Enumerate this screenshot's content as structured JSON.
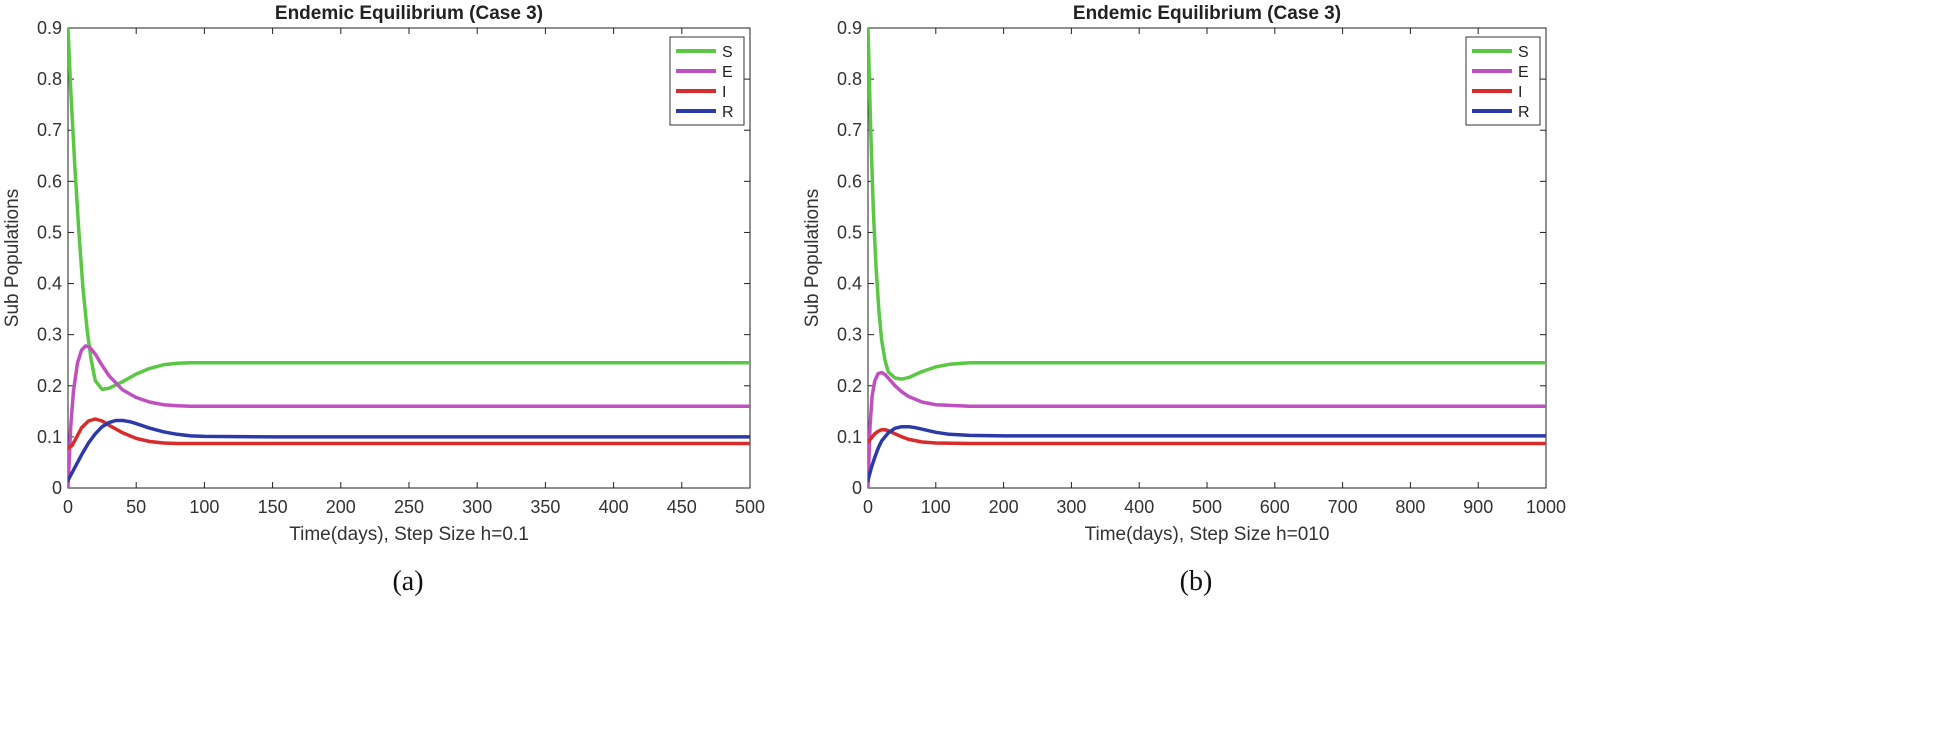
{
  "chart_data": [
    {
      "type": "line",
      "title": "Endemic Equilibrium (Case 3)",
      "xlabel": "Time(days), Step Size h=0.1",
      "ylabel": "Sub Populations",
      "caption": "(a)",
      "xlim": [
        0,
        500
      ],
      "ylim": [
        0,
        0.9
      ],
      "xticks": [
        0,
        50,
        100,
        150,
        200,
        250,
        300,
        350,
        400,
        450,
        500
      ],
      "yticks": [
        0,
        0.1,
        0.2,
        0.3,
        0.4,
        0.5,
        0.6,
        0.7,
        0.8,
        0.9
      ],
      "xtick_labels": [
        "0",
        "50",
        "100",
        "150",
        "200",
        "250",
        "300",
        "350",
        "400",
        "450",
        "500"
      ],
      "ytick_labels": [
        "0",
        "0.1",
        "0.2",
        "0.3",
        "0.4",
        "0.5",
        "0.6",
        "0.7",
        "0.8",
        "0.9"
      ],
      "legend_position": "top-right",
      "series": [
        {
          "name": "S",
          "color": "#5ac845",
          "x": [
            0,
            2,
            5,
            8,
            11,
            14,
            17,
            20,
            25,
            30,
            40,
            50,
            60,
            70,
            80,
            90,
            100,
            120,
            150,
            200,
            300,
            400,
            500
          ],
          "y": [
            0.9,
            0.78,
            0.63,
            0.5,
            0.39,
            0.31,
            0.25,
            0.21,
            0.193,
            0.195,
            0.208,
            0.223,
            0.234,
            0.241,
            0.244,
            0.245,
            0.245,
            0.245,
            0.245,
            0.245,
            0.245,
            0.245,
            0.245
          ]
        },
        {
          "name": "E",
          "color": "#c04fc0",
          "x": [
            0,
            2,
            4,
            7,
            10,
            13,
            16,
            20,
            25,
            30,
            40,
            50,
            60,
            70,
            80,
            90,
            100,
            150,
            200,
            300,
            400,
            500
          ],
          "y": [
            0.0,
            0.12,
            0.19,
            0.245,
            0.27,
            0.278,
            0.275,
            0.262,
            0.24,
            0.22,
            0.192,
            0.177,
            0.168,
            0.163,
            0.161,
            0.16,
            0.16,
            0.16,
            0.16,
            0.16,
            0.16,
            0.16
          ]
        },
        {
          "name": "I",
          "color": "#d82b2b",
          "x": [
            0,
            3,
            6,
            10,
            15,
            20,
            25,
            30,
            40,
            50,
            60,
            70,
            80,
            100,
            150,
            200,
            300,
            400,
            500
          ],
          "y": [
            0.078,
            0.083,
            0.098,
            0.118,
            0.131,
            0.135,
            0.131,
            0.123,
            0.108,
            0.097,
            0.091,
            0.088,
            0.087,
            0.087,
            0.087,
            0.087,
            0.087,
            0.087,
            0.087
          ]
        },
        {
          "name": "R",
          "color": "#2b3aa8",
          "x": [
            0,
            5,
            10,
            15,
            20,
            25,
            30,
            35,
            40,
            45,
            50,
            60,
            70,
            80,
            90,
            100,
            150,
            200,
            300,
            400,
            500
          ],
          "y": [
            0.015,
            0.04,
            0.065,
            0.088,
            0.106,
            0.12,
            0.128,
            0.132,
            0.132,
            0.13,
            0.126,
            0.117,
            0.11,
            0.105,
            0.102,
            0.101,
            0.1,
            0.1,
            0.1,
            0.1,
            0.1
          ]
        }
      ]
    },
    {
      "type": "line",
      "title": "Endemic Equilibrium (Case 3)",
      "xlabel": "Time(days), Step Size h=010",
      "ylabel": "Sub Populations",
      "caption": "(b)",
      "xlim": [
        0,
        1000
      ],
      "ylim": [
        0,
        0.9
      ],
      "xticks": [
        0,
        100,
        200,
        300,
        400,
        500,
        600,
        700,
        800,
        900,
        1000
      ],
      "yticks": [
        0,
        0.1,
        0.2,
        0.3,
        0.4,
        0.5,
        0.6,
        0.7,
        0.8,
        0.9
      ],
      "xtick_labels": [
        "0",
        "100",
        "200",
        "300",
        "400",
        "500",
        "600",
        "700",
        "800",
        "900",
        "1000"
      ],
      "ytick_labels": [
        "0",
        "0.1",
        "0.2",
        "0.3",
        "0.4",
        "0.5",
        "0.6",
        "0.7",
        "0.8",
        "0.9"
      ],
      "legend_position": "top-right",
      "series": [
        {
          "name": "S",
          "color": "#5ac845",
          "x": [
            0,
            4,
            8,
            12,
            16,
            20,
            25,
            30,
            40,
            50,
            60,
            70,
            80,
            100,
            120,
            150,
            200,
            300,
            500,
            700,
            1000
          ],
          "y": [
            0.9,
            0.7,
            0.54,
            0.43,
            0.35,
            0.29,
            0.25,
            0.227,
            0.215,
            0.213,
            0.216,
            0.222,
            0.228,
            0.237,
            0.242,
            0.245,
            0.245,
            0.245,
            0.245,
            0.245,
            0.245
          ]
        },
        {
          "name": "E",
          "color": "#c04fc0",
          "x": [
            0,
            3,
            6,
            10,
            15,
            20,
            25,
            30,
            40,
            50,
            60,
            80,
            100,
            150,
            200,
            300,
            500,
            700,
            1000
          ],
          "y": [
            0.0,
            0.12,
            0.18,
            0.21,
            0.224,
            0.226,
            0.222,
            0.215,
            0.2,
            0.188,
            0.179,
            0.168,
            0.163,
            0.16,
            0.16,
            0.16,
            0.16,
            0.16,
            0.16
          ]
        },
        {
          "name": "I",
          "color": "#d82b2b",
          "x": [
            0,
            5,
            10,
            15,
            20,
            25,
            30,
            40,
            50,
            60,
            80,
            100,
            150,
            200,
            300,
            500,
            700,
            1000
          ],
          "y": [
            0.09,
            0.098,
            0.106,
            0.111,
            0.114,
            0.114,
            0.112,
            0.106,
            0.1,
            0.095,
            0.09,
            0.088,
            0.087,
            0.087,
            0.087,
            0.087,
            0.087,
            0.087
          ]
        },
        {
          "name": "R",
          "color": "#2b3aa8",
          "x": [
            0,
            5,
            10,
            15,
            20,
            30,
            40,
            50,
            60,
            70,
            80,
            100,
            120,
            150,
            200,
            300,
            500,
            700,
            1000
          ],
          "y": [
            0.015,
            0.04,
            0.06,
            0.078,
            0.092,
            0.108,
            0.117,
            0.12,
            0.12,
            0.118,
            0.115,
            0.109,
            0.105,
            0.103,
            0.102,
            0.102,
            0.102,
            0.102,
            0.102
          ]
        }
      ]
    }
  ]
}
